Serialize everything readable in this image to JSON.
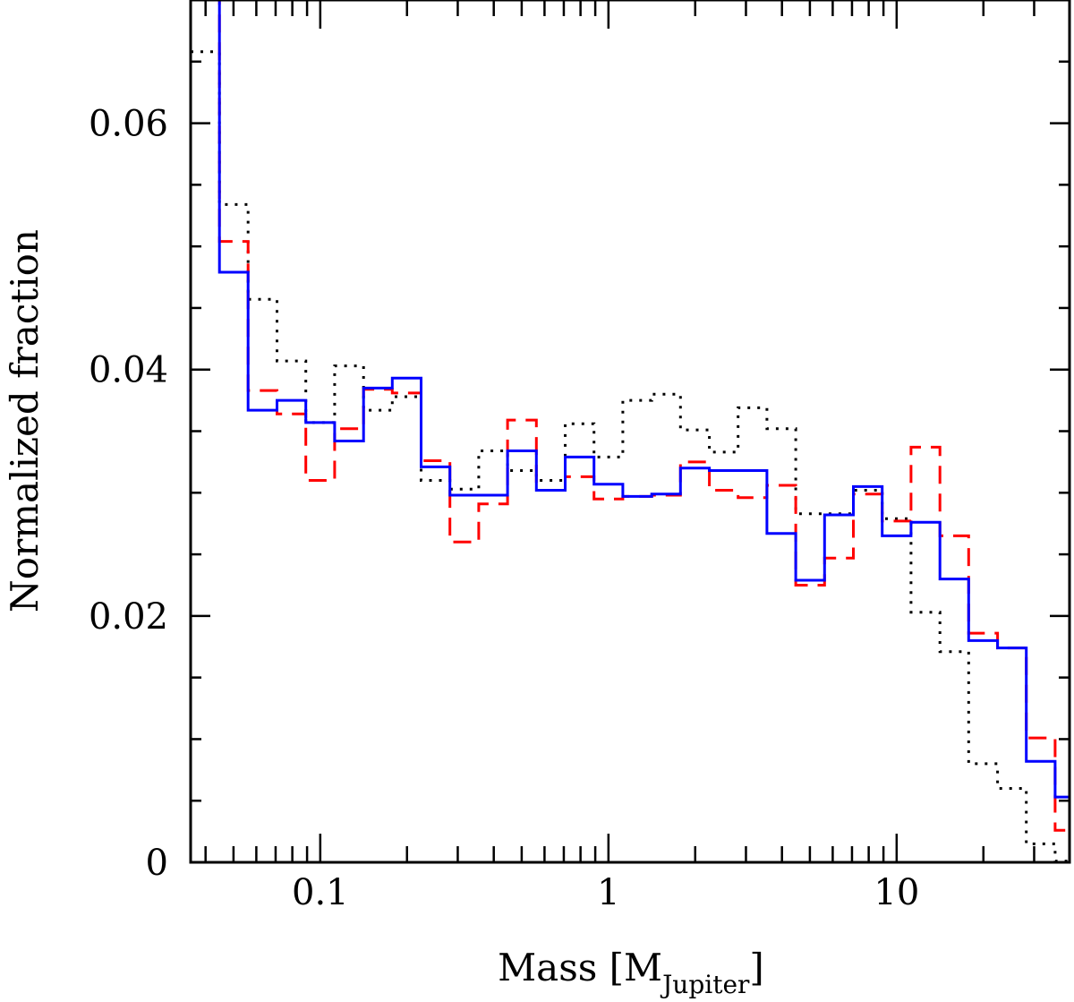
{
  "chart_data": {
    "type": "histogram-step",
    "xlabel": "Mass [M",
    "xlabel_sub": "Jupiter",
    "xlabel_close": "]",
    "ylabel": "Normalized fraction",
    "xscale": "log",
    "xlim": [
      0.0355,
      39.8
    ],
    "ylim": [
      0,
      0.07
    ],
    "x_tick_labels": [
      "0.1",
      "1",
      "10"
    ],
    "x_ticks": [
      0.1,
      1,
      10
    ],
    "y_tick_labels": [
      "0",
      "0.02",
      "0.04",
      "0.06"
    ],
    "y_ticks": [
      0,
      0.02,
      0.04,
      0.06
    ],
    "grid": false,
    "legend": "none",
    "bin_edges": [
      0.0355,
      0.0447,
      0.0562,
      0.0708,
      0.0891,
      0.1122,
      0.1413,
      0.1778,
      0.2239,
      0.2818,
      0.3548,
      0.4467,
      0.5623,
      0.7079,
      0.8913,
      1.122,
      1.413,
      1.778,
      2.239,
      2.818,
      3.548,
      4.467,
      5.623,
      7.079,
      8.913,
      11.22,
      14.13,
      17.78,
      22.39,
      28.18,
      35.48,
      44.67
    ],
    "series": [
      {
        "style": "dotted",
        "color": "#000000",
        "values": [
          0.0658,
          0.0534,
          0.0457,
          0.0407,
          0.0357,
          0.0403,
          0.0367,
          0.0378,
          0.031,
          0.0303,
          0.0334,
          0.0318,
          0.031,
          0.0356,
          0.0329,
          0.0375,
          0.038,
          0.0351,
          0.0333,
          0.0369,
          0.0352,
          0.0283,
          0.0283,
          0.0302,
          0.0279,
          0.0203,
          0.0171,
          0.008,
          0.006,
          0.0015,
          0.0001
        ]
      },
      {
        "style": "dashed",
        "color": "#ff0000",
        "values": [
          0.08,
          0.0504,
          0.0383,
          0.0364,
          0.031,
          0.0352,
          0.0384,
          0.0381,
          0.0326,
          0.026,
          0.0291,
          0.0359,
          0.0302,
          0.0313,
          0.0295,
          0.0297,
          0.0298,
          0.0325,
          0.0302,
          0.0296,
          0.0306,
          0.0225,
          0.0247,
          0.0299,
          0.0277,
          0.0337,
          0.0265,
          0.0186,
          0.0174,
          0.0101,
          0.0026
        ]
      },
      {
        "style": "solid",
        "color": "#0000ff",
        "values": [
          0.08,
          0.0479,
          0.0367,
          0.0375,
          0.0357,
          0.0342,
          0.0385,
          0.0393,
          0.0321,
          0.0298,
          0.0298,
          0.0334,
          0.0302,
          0.0329,
          0.0307,
          0.0297,
          0.0299,
          0.032,
          0.0318,
          0.0318,
          0.0267,
          0.0229,
          0.0282,
          0.0305,
          0.0265,
          0.0276,
          0.023,
          0.018,
          0.0174,
          0.0082,
          0.0053
        ]
      }
    ]
  }
}
